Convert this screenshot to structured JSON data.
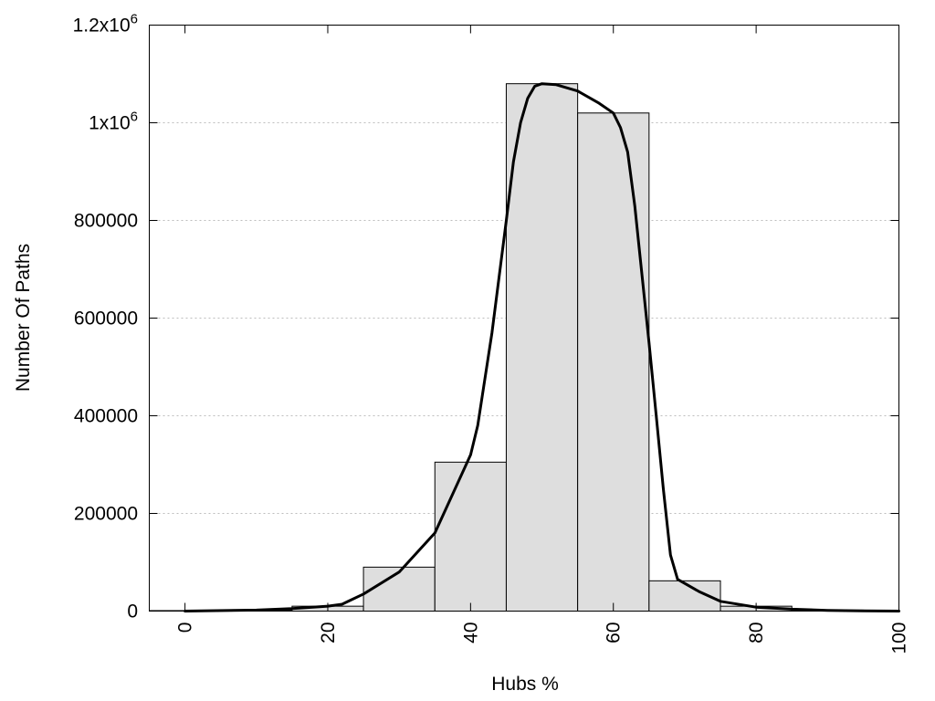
{
  "chart_data": {
    "type": "bar",
    "title": "",
    "xlabel": "Hubs %",
    "ylabel": "Number Of Paths",
    "xlim": [
      -5,
      100
    ],
    "ylim": [
      0,
      1200000
    ],
    "grid": "horizontal dotted",
    "legend": "none",
    "x_ticks": [
      {
        "value": 0,
        "label": "0"
      },
      {
        "value": 20,
        "label": "20"
      },
      {
        "value": 40,
        "label": "40"
      },
      {
        "value": 60,
        "label": "60"
      },
      {
        "value": 80,
        "label": "80"
      },
      {
        "value": 100,
        "label": "100"
      }
    ],
    "y_ticks": [
      {
        "value": 0,
        "label": "0"
      },
      {
        "value": 200000,
        "label": "200000"
      },
      {
        "value": 400000,
        "label": "400000"
      },
      {
        "value": 600000,
        "label": "600000"
      },
      {
        "value": 800000,
        "label": "800000"
      },
      {
        "value": 1000000,
        "label": "1x10",
        "sup": "6"
      },
      {
        "value": 1200000,
        "label": "1.2x10",
        "sup": "6"
      }
    ],
    "bins": [
      {
        "x0": -5,
        "x1": 5,
        "value": 1000
      },
      {
        "x0": 5,
        "x1": 15,
        "value": 2000
      },
      {
        "x0": 15,
        "x1": 25,
        "value": 10000
      },
      {
        "x0": 25,
        "x1": 35,
        "value": 90000
      },
      {
        "x0": 35,
        "x1": 45,
        "value": 305000
      },
      {
        "x0": 45,
        "x1": 55,
        "value": 1080000
      },
      {
        "x0": 55,
        "x1": 65,
        "value": 1020000
      },
      {
        "x0": 65,
        "x1": 75,
        "value": 62000
      },
      {
        "x0": 75,
        "x1": 85,
        "value": 10000
      },
      {
        "x0": 85,
        "x1": 95,
        "value": 2000
      },
      {
        "x0": 95,
        "x1": 100,
        "value": 500
      }
    ],
    "smoothed_curve": [
      [
        0,
        0
      ],
      [
        10,
        2000
      ],
      [
        15,
        5000
      ],
      [
        20,
        10000
      ],
      [
        22,
        14000
      ],
      [
        25,
        35000
      ],
      [
        30,
        80000
      ],
      [
        35,
        160000
      ],
      [
        40,
        320000
      ],
      [
        41,
        380000
      ],
      [
        43,
        570000
      ],
      [
        45,
        800000
      ],
      [
        46,
        920000
      ],
      [
        47,
        1000000
      ],
      [
        48,
        1050000
      ],
      [
        49,
        1075000
      ],
      [
        50,
        1080000
      ],
      [
        52,
        1078000
      ],
      [
        55,
        1065000
      ],
      [
        58,
        1040000
      ],
      [
        60,
        1020000
      ],
      [
        61,
        990000
      ],
      [
        62,
        940000
      ],
      [
        63,
        830000
      ],
      [
        65,
        550000
      ],
      [
        66,
        400000
      ],
      [
        67,
        250000
      ],
      [
        68,
        115000
      ],
      [
        69,
        65000
      ],
      [
        72,
        40000
      ],
      [
        75,
        20000
      ],
      [
        80,
        8000
      ],
      [
        85,
        4000
      ],
      [
        90,
        1500
      ],
      [
        95,
        500
      ],
      [
        100,
        0
      ]
    ]
  }
}
